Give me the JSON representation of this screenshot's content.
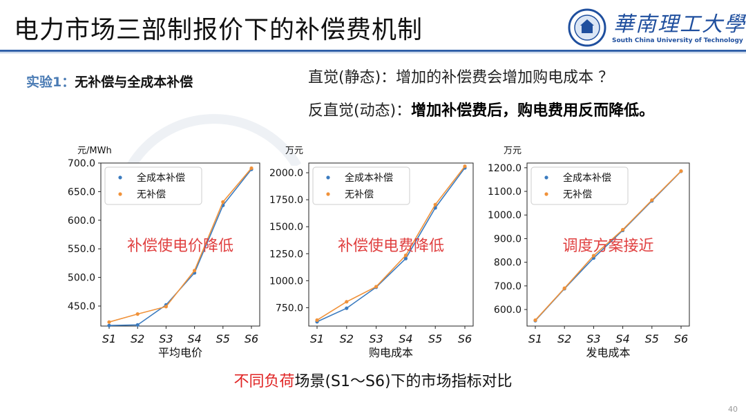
{
  "title": "电力市场三部制报价下的补偿费机制",
  "logo": {
    "cn": "華南理工大學",
    "en": "South China University of Technology"
  },
  "experiment": {
    "prefix": "实验1：",
    "text": "无补偿与全成本补偿"
  },
  "intuition": {
    "static": "直觉(静态)：增加的补偿费会增加购电成本 ？",
    "dynamic_prefix": "反直觉(动态)：",
    "dynamic_text": "增加补偿费后，购电费用反而降低。"
  },
  "caption": {
    "red": "不同负荷",
    "rest": "场景(S1～S6)下的市场指标对比"
  },
  "page_number": "40",
  "colors": {
    "blue": "#3b7bbf",
    "orange": "#f0923a",
    "annotation": "#e04040",
    "accent": "#2f5fa8"
  },
  "chart_data": [
    {
      "type": "line",
      "unit": "元/MWh",
      "xlabel": "平均电价",
      "annotation": "补偿使电价降低",
      "categories": [
        "S1",
        "S2",
        "S3",
        "S4",
        "S5",
        "S6"
      ],
      "ylim": [
        415,
        700
      ],
      "yticks": [
        "450.0",
        "500.0",
        "550.0",
        "600.0",
        "650.0",
        "700.0"
      ],
      "ytick_values": [
        450,
        500,
        550,
        600,
        650,
        700
      ],
      "legend": "top-left",
      "series": [
        {
          "name": "全成本补偿",
          "values": [
            416,
            417,
            452,
            508,
            626,
            689
          ]
        },
        {
          "name": "无补偿",
          "values": [
            422,
            436,
            449,
            512,
            632,
            691
          ]
        }
      ]
    },
    {
      "type": "line",
      "unit": "万元",
      "xlabel": "购电成本",
      "annotation": "补偿使电费降低",
      "categories": [
        "S1",
        "S2",
        "S3",
        "S4",
        "S5",
        "S6"
      ],
      "ylim": [
        580,
        2090
      ],
      "yticks": [
        "750.0",
        "1000.0",
        "1250.0",
        "1500.0",
        "1750.0",
        "2000.0"
      ],
      "ytick_values": [
        750,
        1000,
        1250,
        1500,
        1750,
        2000
      ],
      "legend": "top-left",
      "series": [
        {
          "name": "全成本补偿",
          "values": [
            620,
            745,
            940,
            1205,
            1675,
            2045
          ]
        },
        {
          "name": "无补偿",
          "values": [
            635,
            805,
            945,
            1235,
            1705,
            2060
          ]
        }
      ]
    },
    {
      "type": "line",
      "unit": "万元",
      "xlabel": "发电成本",
      "annotation": "调度方案接近",
      "categories": [
        "S1",
        "S2",
        "S3",
        "S4",
        "S5",
        "S6"
      ],
      "ylim": [
        530,
        1220
      ],
      "yticks": [
        "600.0",
        "700.0",
        "800.0",
        "900.0",
        "1000.0",
        "1100.0",
        "1200.0"
      ],
      "ytick_values": [
        600,
        700,
        800,
        900,
        1000,
        1100,
        1200
      ],
      "legend": "top-left",
      "series": [
        {
          "name": "全成本补偿",
          "values": [
            553,
            688,
            818,
            935,
            1060,
            1185
          ]
        },
        {
          "name": "无补偿",
          "values": [
            555,
            690,
            828,
            938,
            1063,
            1186
          ]
        }
      ]
    }
  ]
}
